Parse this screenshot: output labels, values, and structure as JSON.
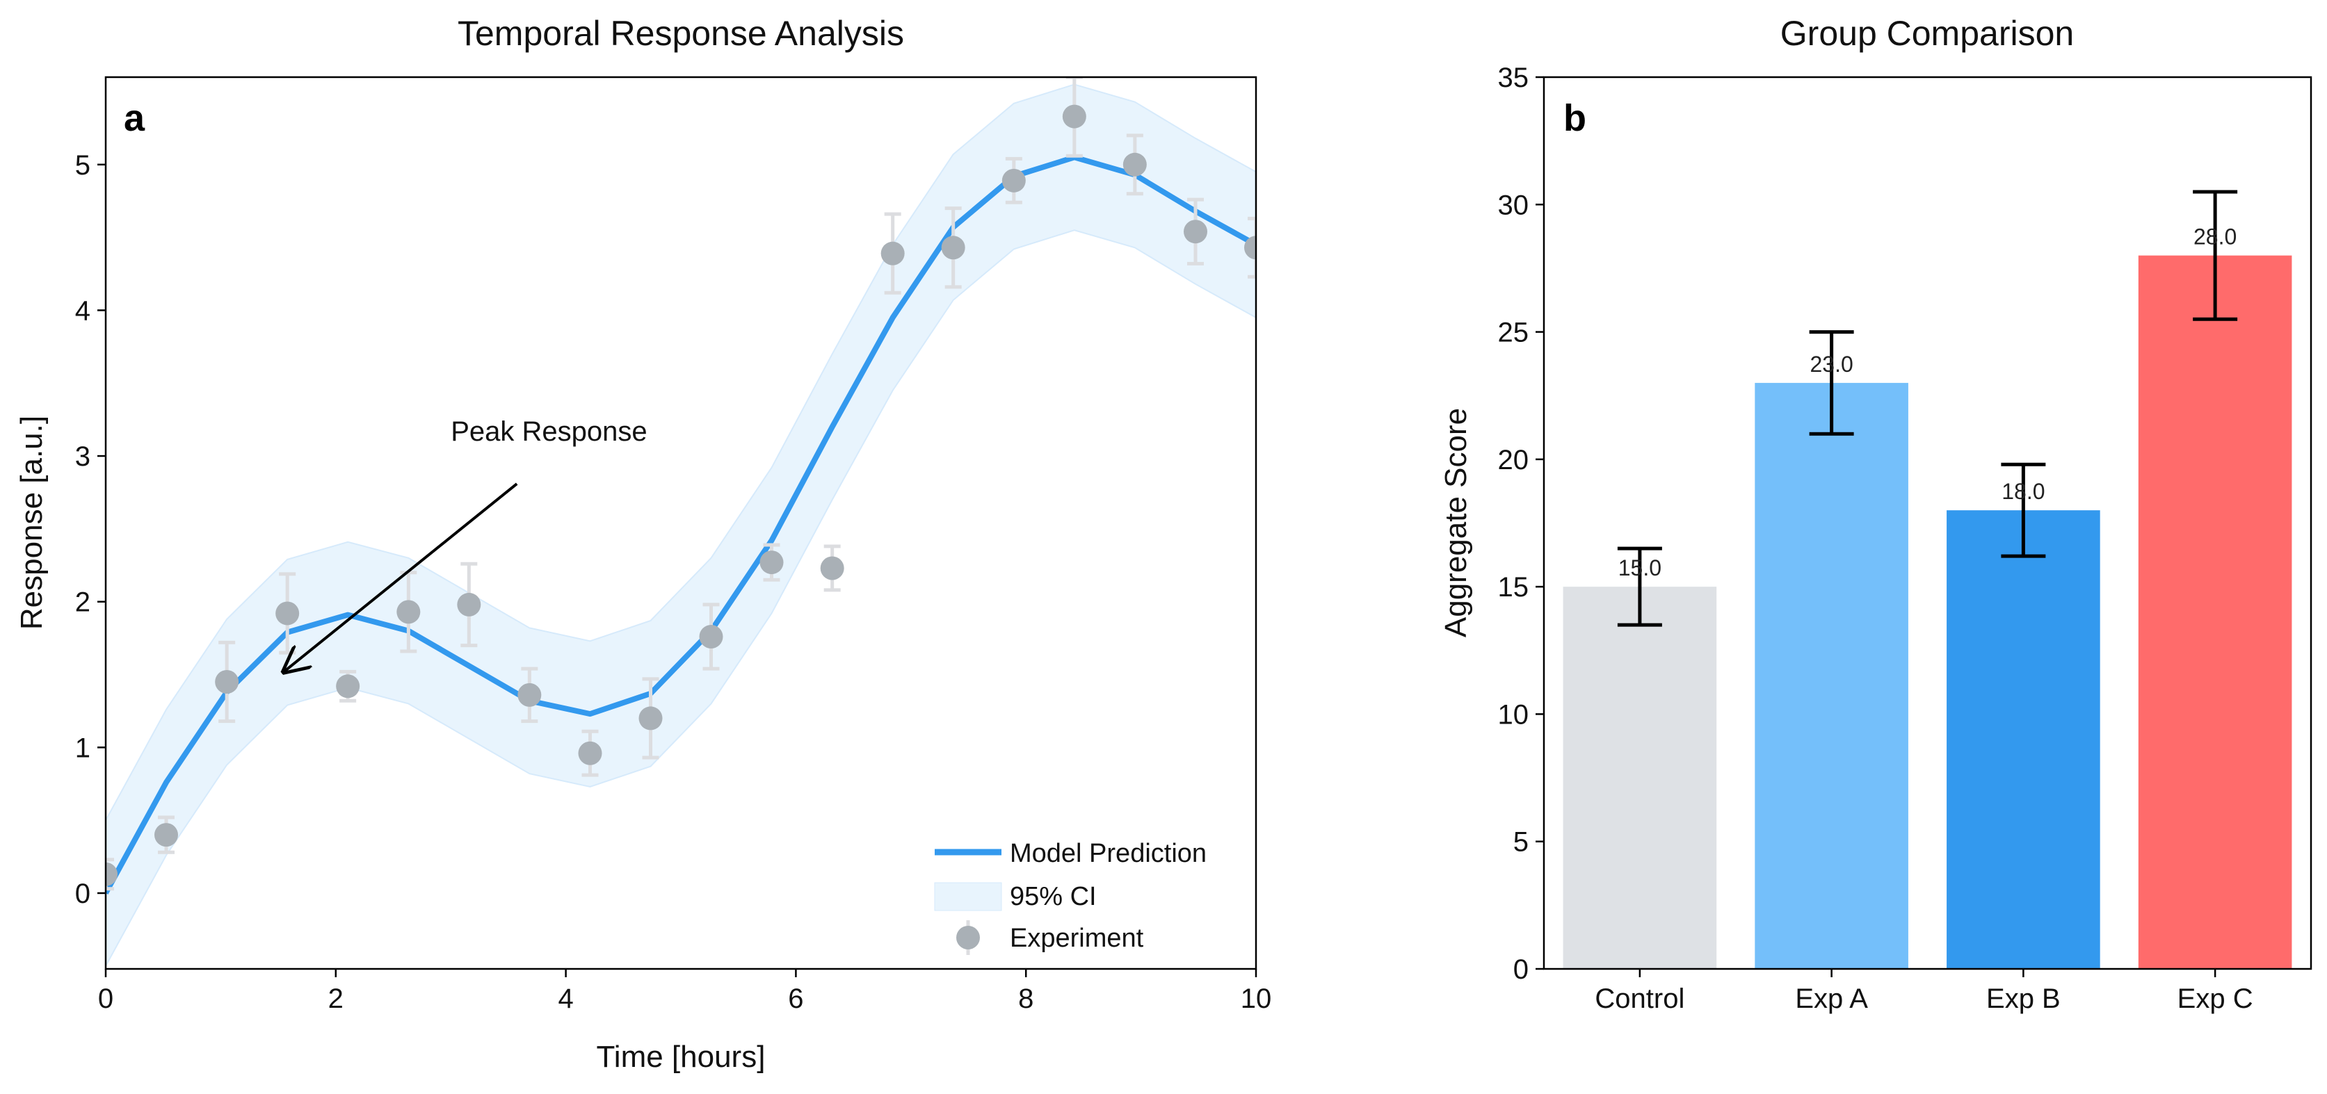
{
  "chart_data": [
    {
      "type": "line",
      "panel_label": "a",
      "title": "Temporal Response Analysis",
      "xlabel": "Time [hours]",
      "ylabel": "Response [a.u.]",
      "xlim": [
        0,
        10
      ],
      "ylim": [
        -0.52,
        5.6
      ],
      "xticks": [
        0,
        2,
        4,
        6,
        8,
        10
      ],
      "yticks": [
        0,
        1,
        2,
        3,
        4,
        5
      ],
      "grid": false,
      "legend_position": "bottom-right",
      "annotation": {
        "text": "Peak Response",
        "text_at": [
          3.0,
          3.0
        ],
        "arrow_to": [
          1.55,
          1.52
        ]
      },
      "series": [
        {
          "name": "Model Prediction",
          "kind": "line",
          "color": "#3399ee",
          "x": [
            0,
            0.526,
            1.053,
            1.579,
            2.105,
            2.632,
            3.158,
            3.684,
            4.211,
            4.737,
            5.263,
            5.789,
            6.316,
            6.842,
            7.368,
            7.895,
            8.421,
            8.947,
            9.474,
            10
          ],
          "y": [
            0.0,
            0.76,
            1.38,
            1.79,
            1.91,
            1.8,
            1.56,
            1.32,
            1.23,
            1.37,
            1.8,
            2.42,
            3.2,
            3.95,
            4.57,
            4.92,
            5.05,
            4.93,
            4.68,
            4.45
          ]
        },
        {
          "name": "95% CI",
          "kind": "band",
          "color": "#e8f4fd",
          "half_width": 0.5
        },
        {
          "name": "Experiment",
          "kind": "scatter",
          "color": "#a9b0b6",
          "errcolor": "#dcdde0",
          "x": [
            0,
            0.526,
            1.053,
            1.579,
            2.105,
            2.632,
            3.158,
            3.684,
            4.211,
            4.737,
            5.263,
            5.789,
            6.316,
            6.842,
            7.368,
            7.895,
            8.421,
            8.947,
            9.474,
            10
          ],
          "y": [
            0.13,
            0.4,
            1.45,
            1.92,
            1.42,
            1.93,
            1.98,
            1.36,
            0.96,
            1.2,
            1.76,
            2.27,
            2.23,
            4.39,
            4.43,
            4.89,
            5.33,
            5.0,
            4.54,
            4.43
          ],
          "err": [
            0.1,
            0.12,
            0.27,
            0.27,
            0.1,
            0.27,
            0.28,
            0.18,
            0.15,
            0.27,
            0.22,
            0.12,
            0.15,
            0.27,
            0.27,
            0.15,
            0.27,
            0.2,
            0.22,
            0.2
          ]
        }
      ]
    },
    {
      "type": "bar",
      "panel_label": "b",
      "title": "Group Comparison",
      "xlabel": "",
      "ylabel": "Aggregate Score",
      "ylim": [
        0,
        35
      ],
      "yticks": [
        0,
        5,
        10,
        15,
        20,
        25,
        30,
        35
      ],
      "grid": false,
      "categories": [
        "Control",
        "Exp A",
        "Exp B",
        "Exp C"
      ],
      "values": [
        15.0,
        23.0,
        18.0,
        28.0
      ],
      "errors": [
        1.5,
        2.0,
        1.8,
        2.5
      ],
      "data_labels": [
        "15.0",
        "23.0",
        "18.0",
        "28.0"
      ],
      "colors": [
        "#dee1e5",
        "#74bffa",
        "#3399ee",
        "#ff6b6b"
      ]
    }
  ]
}
